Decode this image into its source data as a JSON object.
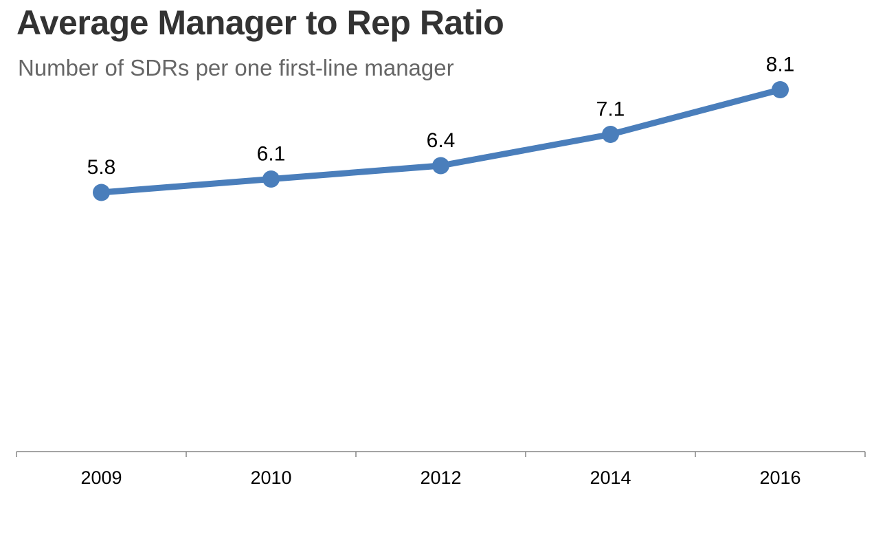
{
  "chart_data": {
    "type": "line",
    "title": "Average Manager to Rep Ratio",
    "subtitle": "Number of SDRs per one first-line manager",
    "categories": [
      "2009",
      "2010",
      "2012",
      "2014",
      "2016"
    ],
    "series": [
      {
        "values": [
          5.8,
          6.1,
          6.4,
          7.1,
          8.1
        ],
        "color": "#4A7EBB"
      }
    ],
    "data_labels": [
      "5.8",
      "6.1",
      "6.4",
      "7.1",
      "8.1"
    ],
    "xlabel": "",
    "ylabel": "",
    "ylim": [
      0,
      10
    ],
    "grid": false,
    "y_axis_visible": false,
    "legend": "none"
  }
}
